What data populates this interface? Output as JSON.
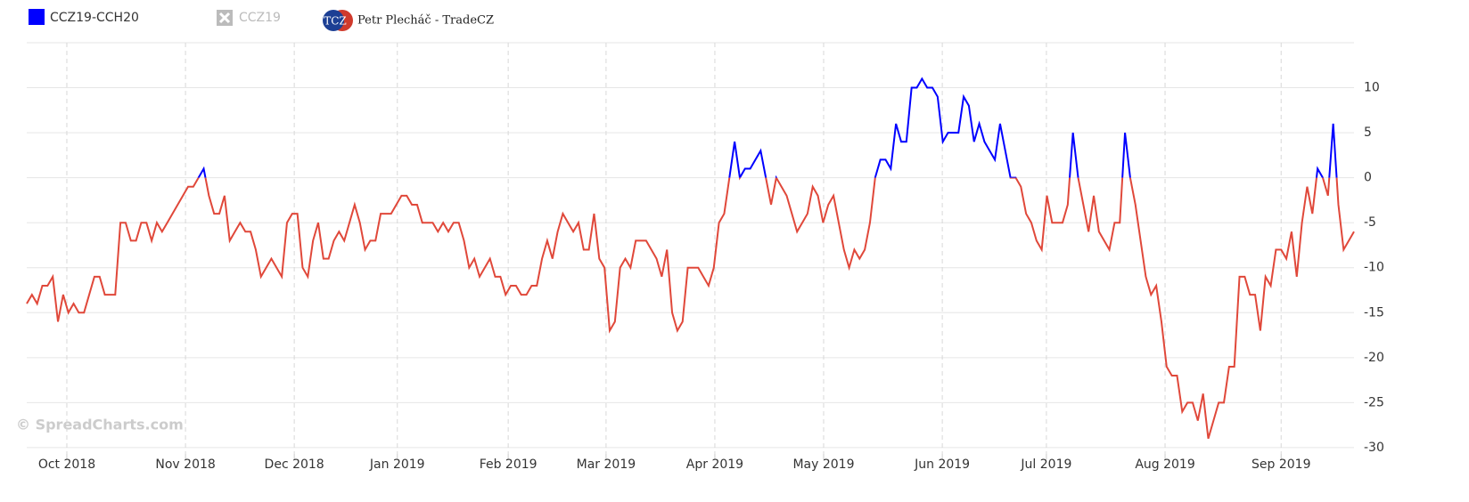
{
  "chart_data": {
    "type": "line",
    "watermark": "© SpreadCharts.com",
    "brand": {
      "logo_text": "TCZ",
      "name": "Petr Plecháč - TradeCZ"
    },
    "legend_items": [
      {
        "name": "CCZ19",
        "hidden": true
      }
    ],
    "series": [
      {
        "name": "CCZ19-CCH20",
        "color": "#0000ff",
        "negative_color": "#e0483a",
        "values": [
          -14,
          -13,
          -14,
          -12,
          -12,
          -11,
          -16,
          -13,
          -15,
          -14,
          -15,
          -15,
          -13,
          -11,
          -11,
          -13,
          -13,
          -13,
          -5,
          -5,
          -7,
          -7,
          -5,
          -5,
          -7,
          -5,
          -6,
          -5,
          -4,
          -3,
          -2,
          -1,
          -1,
          0,
          1,
          -2,
          -4,
          -4,
          -2,
          -7,
          -6,
          -5,
          -6,
          -6,
          -8,
          -11,
          -10,
          -9,
          -10,
          -11,
          -5,
          -4,
          -4,
          -10,
          -11,
          -7,
          -5,
          -9,
          -9,
          -7,
          -6,
          -7,
          -5,
          -3,
          -5,
          -8,
          -7,
          -7,
          -4,
          -4,
          -4,
          -3,
          -2,
          -2,
          -3,
          -3,
          -5,
          -5,
          -5,
          -6,
          -5,
          -6,
          -5,
          -5,
          -7,
          -10,
          -9,
          -11,
          -10,
          -9,
          -11,
          -11,
          -13,
          -12,
          -12,
          -13,
          -13,
          -12,
          -12,
          -9,
          -7,
          -9,
          -6,
          -4,
          -5,
          -6,
          -5,
          -8,
          -8,
          -4,
          -9,
          -10,
          -17,
          -16,
          -10,
          -9,
          -10,
          -7,
          -7,
          -7,
          -8,
          -9,
          -11,
          -8,
          -15,
          -17,
          -16,
          -10,
          -10,
          -10,
          -11,
          -12,
          -10,
          -5,
          -4,
          0,
          4,
          0,
          1,
          1,
          2,
          3,
          0,
          -3,
          0,
          -1,
          -2,
          -4,
          -6,
          -5,
          -4,
          -1,
          -2,
          -5,
          -3,
          -2,
          -5,
          -8,
          -10,
          -8,
          -9,
          -8,
          -5,
          0,
          2,
          2,
          1,
          6,
          4,
          4,
          10,
          10,
          11,
          10,
          10,
          9,
          4,
          5,
          5,
          5,
          9,
          8,
          4,
          6,
          4,
          3,
          2,
          6,
          3,
          0,
          0,
          -1,
          -4,
          -5,
          -7,
          -8,
          -2,
          -5,
          -5,
          -5,
          -3,
          5,
          0,
          -3,
          -6,
          -2,
          -6,
          -7,
          -8,
          -5,
          -5,
          5,
          0,
          -3,
          -7,
          -11,
          -13,
          -12,
          -16,
          -21,
          -22,
          -22,
          -26,
          -25,
          -25,
          -27,
          -24,
          -29,
          -27,
          -25,
          -25,
          -21,
          -21,
          -11,
          -11,
          -13,
          -13,
          -17,
          -11,
          -12,
          -8,
          -8,
          -9,
          -6,
          -11,
          -5,
          -1,
          -4,
          1,
          0,
          -2,
          6,
          -3,
          -8,
          -7,
          -6
        ]
      }
    ],
    "xlim": [
      0,
      255
    ],
    "xticks": [
      {
        "value": 7.7,
        "label": "Oct 2018"
      },
      {
        "value": 30.5,
        "label": "Nov 2018"
      },
      {
        "value": 51.4,
        "label": "Dec 2018"
      },
      {
        "value": 71.2,
        "label": "Jan 2019"
      },
      {
        "value": 92.5,
        "label": "Feb 2019"
      },
      {
        "value": 111.3,
        "label": "Mar 2019"
      },
      {
        "value": 132.2,
        "label": "Apr 2019"
      },
      {
        "value": 153.1,
        "label": "May 2019"
      },
      {
        "value": 175.9,
        "label": "Jun 2019"
      },
      {
        "value": 195.9,
        "label": "Jul 2019"
      },
      {
        "value": 218.7,
        "label": "Aug 2019"
      },
      {
        "value": 241.0,
        "label": "Sep 2019"
      }
    ],
    "ylim": [
      -30.7,
      15
    ],
    "yticks": [
      -30,
      -25,
      -20,
      -15,
      -10,
      -5,
      0,
      5,
      10
    ],
    "grid": true
  }
}
